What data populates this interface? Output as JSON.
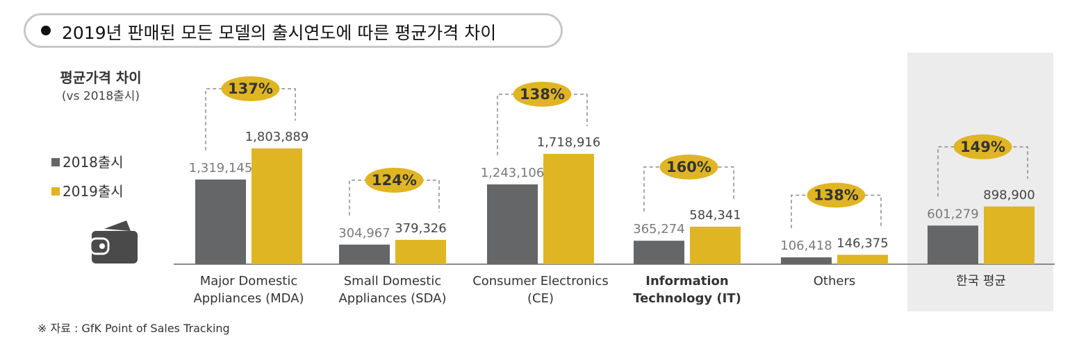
{
  "title": "2019년 판매된 모든 모델의 출시연도에 따른 평균가격 차이",
  "y_axis": {
    "label": "평균가격 차이",
    "sublabel": "(vs 2018출시)"
  },
  "source": "※ 자료 : GfK Point of Sales Tracking",
  "icon": "wallet-icon",
  "colors": {
    "s2018": "#646668",
    "s2019": "#e0b523",
    "bubble": "#e0b523",
    "highlight_bg": "#ececec",
    "axis": "#888888"
  },
  "chart_data": {
    "type": "bar",
    "categories": [
      "Major Domestic|Appliances (MDA)",
      "Small Domestic|Appliances (SDA)",
      "Consumer Electronics|(CE)",
      "Information|Technology (IT)",
      "Others",
      "한국 평균"
    ],
    "bold_categories": [
      false,
      false,
      false,
      true,
      false,
      false
    ],
    "highlighted_category": "한국 평균",
    "series": [
      {
        "name": "2018출시",
        "values": [
          1319145,
          304967,
          1243106,
          365274,
          106418,
          601279
        ]
      },
      {
        "name": "2019출시",
        "values": [
          1803889,
          379326,
          1718916,
          584341,
          146375,
          898900
        ]
      }
    ],
    "value_labels": [
      [
        "1,319,145",
        "304,967",
        "1,243,106",
        "365,274",
        "106,418",
        "601,279"
      ],
      [
        "1,803,889",
        "379,326",
        "1,718,916",
        "584,341",
        "146,375",
        "898,900"
      ]
    ],
    "ratio_labels": [
      "137%",
      "124%",
      "138%",
      "160%",
      "138%",
      "149%"
    ],
    "ylim": [
      0,
      1950000
    ],
    "legend_placement": "left",
    "grid": false
  }
}
